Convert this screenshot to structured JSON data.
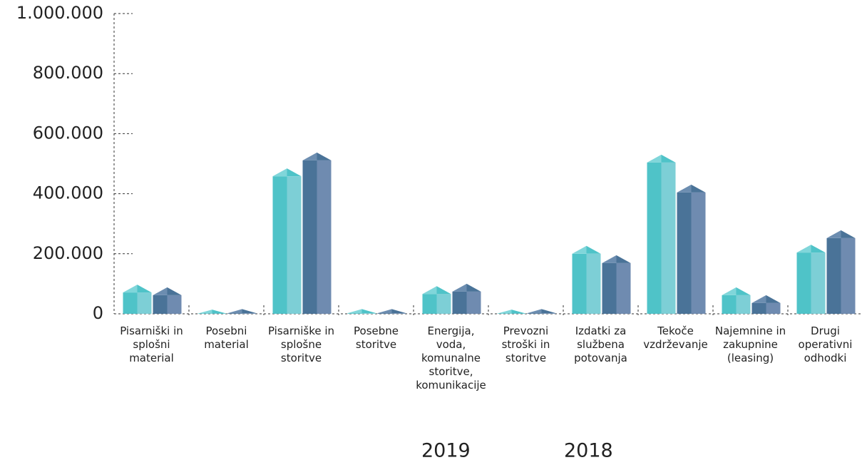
{
  "chart_data": {
    "type": "bar3d",
    "categories": [
      "Pisarniški in splošni material",
      "Posebni material",
      "Pisarniške in splošne storitve",
      "Posebne storitve",
      "Energija, voda, komunalne storitve, komunikacije",
      "Prevozni stroški in storitve",
      "Izdatki za službena potovanja",
      "Tekoče vzdrževanje",
      "Najemnine in zakupnine (leasing)",
      "Drugi operativni odhodki"
    ],
    "series": [
      {
        "name": "2019",
        "color": "#4fc3c8",
        "values": [
          71000,
          1000,
          458000,
          2000,
          66000,
          1000,
          200000,
          504000,
          62000,
          204000
        ]
      },
      {
        "name": "2018",
        "color": "#4a7398",
        "values": [
          62000,
          2000,
          511000,
          2000,
          74000,
          2000,
          169000,
          404000,
          36000,
          252000
        ]
      }
    ],
    "ylim": [
      0,
      1000000
    ],
    "yticks": [
      0,
      {
        "value": 200000,
        "label": "200.000"
      },
      {
        "value": 400000,
        "label": "400.000"
      },
      {
        "value": 600000,
        "label": "600.000"
      },
      {
        "value": 800000,
        "label": "800.000"
      },
      {
        "value": 1000000,
        "label": "1.000.000"
      }
    ],
    "legend": "bottom"
  }
}
